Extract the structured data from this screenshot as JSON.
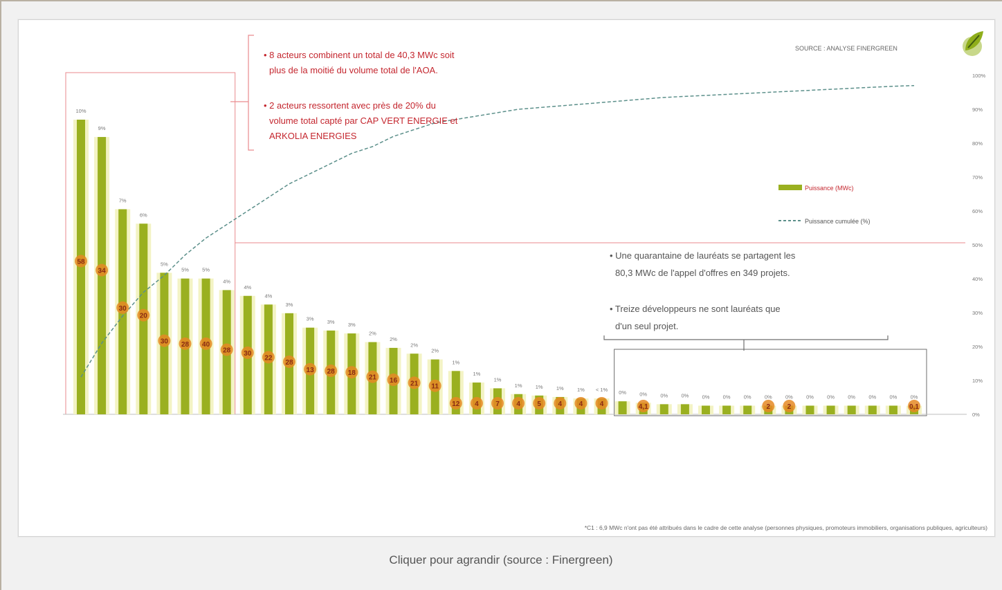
{
  "caption": "Cliquer pour agrandir (source : Finergreen)",
  "source_text": "SOURCE : ANALYSE FINERGREEN",
  "logo_icon": "leaf-logo-icon",
  "colors": {
    "bar": "#9ab020",
    "bar_glow": "#f3f3c4",
    "badge": "#e58a24",
    "badge_text": "#8a2a14",
    "annotation": "#c4262e",
    "curve": "#5b8f8a",
    "frame_red": "#e98a8e",
    "frame_gray": "#6e6e6e"
  },
  "annotation_top": {
    "lines": [
      "• 8 acteurs combinent un total de 40,3 MWc soit",
      "plus de la moitié du volume total de l'AOA.",
      "",
      "• 2 acteurs ressortent avec près de 20% du",
      "volume total capté par CAP VERT ENERGIE et",
      "ARKOLIA ENERGIES"
    ]
  },
  "annotation_right": {
    "lines": [
      "• Une quarantaine de lauréats se partagent les",
      "80,3 MWc de l'appel d'offres en 349 projets.",
      "",
      "• Treize développeurs ne sont lauréats que",
      "d'un seul projet."
    ]
  },
  "footnote": "*C1 : 6,9 MWc n'ont pas été attribués dans le cadre de cette analyse (personnes physiques, promoteurs immobiliers, organisations publiques, agriculteurs)",
  "chart_data": {
    "type": "bar",
    "series": [
      {
        "name": "Puissance (MWc)",
        "percent_labels": [
          "10%",
          "9%",
          "7%",
          "6%",
          "5%",
          "5%",
          "5%",
          "4%",
          "4%",
          "4%",
          "3%",
          "3%",
          "3%",
          "3%",
          "2%",
          "2%",
          "2%",
          "2%",
          "1%",
          "1%",
          "1%",
          "1%",
          "1%",
          "1%",
          "1%",
          "< 1%",
          "0%",
          "0%",
          "0%",
          "0%",
          "0%",
          "0%",
          "0%",
          "0%",
          "0%",
          "0%",
          "0%",
          "0%",
          "0%",
          "0%",
          "0%"
        ],
        "badge_labels": [
          "58",
          "34",
          "30",
          "20",
          "30",
          "28",
          "40",
          "28",
          "30",
          "22",
          "28",
          "13",
          "28",
          "18",
          "21",
          "16",
          "21",
          "11",
          "12",
          "4",
          "7",
          "4",
          "5",
          "4",
          "4",
          "4",
          "",
          "4,1",
          "",
          "",
          "",
          "",
          "",
          "2",
          "2",
          "",
          "",
          "",
          "",
          "",
          "0,1"
        ],
        "values": [
          10.2,
          9.6,
          7.1,
          6.6,
          4.9,
          4.7,
          4.7,
          4.3,
          4.1,
          3.8,
          3.5,
          3.0,
          2.9,
          2.8,
          2.5,
          2.3,
          2.1,
          1.9,
          1.5,
          1.1,
          0.9,
          0.7,
          0.65,
          0.6,
          0.55,
          0.55,
          0.45,
          0.4,
          0.35,
          0.35,
          0.3,
          0.3,
          0.3,
          0.3,
          0.3,
          0.3,
          0.3,
          0.3,
          0.3,
          0.3,
          0.3
        ]
      },
      {
        "name": "Puissance cumulée (%)",
        "values": [
          11,
          21,
          29,
          36,
          41,
          47,
          52,
          56,
          60,
          64,
          68,
          71,
          74,
          77,
          79,
          82,
          84,
          86,
          87,
          88,
          89,
          90,
          90.5,
          91,
          91.5,
          92,
          92.5,
          93,
          93.5,
          93.8,
          94.1,
          94.4,
          94.7,
          95,
          95.3,
          95.6,
          95.9,
          96.2,
          96.5,
          96.8,
          97
        ]
      }
    ],
    "y2_ticks": [
      "0%",
      "10%",
      "20%",
      "30%",
      "40%",
      "50%",
      "60%",
      "70%",
      "80%",
      "90%",
      "100%"
    ],
    "y2lim": [
      0,
      100
    ],
    "legend": [
      "Puissance (MWc)",
      "Puissance cumulée (%)"
    ],
    "legend_position": "right",
    "grid": false
  }
}
